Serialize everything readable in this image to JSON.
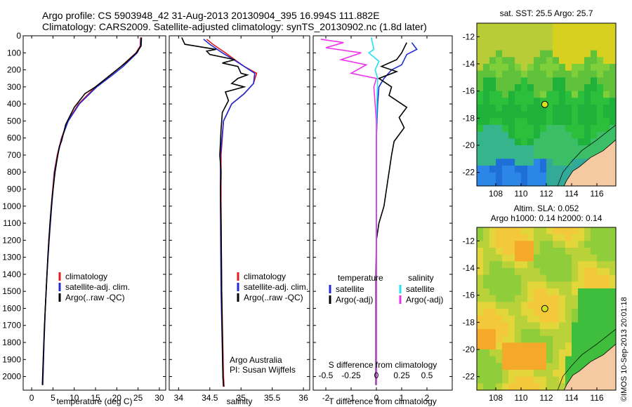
{
  "header": {
    "line1": "Argo profile: CS 5903948_42 31-Aug-2013 20130904_395 16.994S 111.882E",
    "line2": "Climatology: CARS2009. Satellite-adjusted climatology: synTS_20130902.nc (1.8d later)"
  },
  "colors": {
    "climatology": "#e41a1c",
    "satellite": "#1f2bd6",
    "argo": "#000000",
    "salinity_satellite": "#22e3ee",
    "salinity_argo": "#ee33ee",
    "land": "#f5c9a1"
  },
  "chart_data": [
    {
      "type": "line",
      "id": "temperature",
      "xlabel": "temperature (deg C)",
      "ylabel": "",
      "xlim": [
        -2,
        31.5
      ],
      "ylim": [
        2080,
        0
      ],
      "xticks": [
        "0",
        "5",
        "10",
        "15",
        "20",
        "25",
        "30"
      ],
      "yticks": [
        "0",
        "100",
        "200",
        "300",
        "400",
        "500",
        "600",
        "700",
        "800",
        "900",
        "1000",
        "1100",
        "1200",
        "1300",
        "1400",
        "1500",
        "1600",
        "1700",
        "1800",
        "1900",
        "2000"
      ],
      "legend": [
        "climatology",
        "satellite-adj. clim.",
        "Argo(..raw -QC)"
      ],
      "series": [
        {
          "name": "climatology",
          "color": "#e41a1c",
          "points": [
            [
              25.6,
              10
            ],
            [
              25.5,
              60
            ],
            [
              24.5,
              100
            ],
            [
              21,
              180
            ],
            [
              18.5,
              230
            ],
            [
              15,
              300
            ],
            [
              11,
              400
            ],
            [
              8.5,
              500
            ],
            [
              7,
              600
            ],
            [
              6,
              700
            ],
            [
              5.3,
              800
            ],
            [
              4.6,
              1000
            ],
            [
              4,
              1200
            ],
            [
              3.6,
              1400
            ],
            [
              3.2,
              1600
            ],
            [
              2.9,
              1800
            ],
            [
              2.6,
              2050
            ]
          ]
        },
        {
          "name": "satellite-adj. clim.",
          "color": "#1f2bd6",
          "points": [
            [
              25.7,
              10
            ],
            [
              25.6,
              60
            ],
            [
              24.8,
              100
            ],
            [
              21.5,
              180
            ],
            [
              19,
              230
            ],
            [
              15.3,
              300
            ],
            [
              11.2,
              400
            ],
            [
              8.6,
              500
            ],
            [
              7.1,
              600
            ],
            [
              6.1,
              700
            ],
            [
              5.4,
              800
            ],
            [
              4.7,
              1000
            ],
            [
              4.1,
              1200
            ],
            [
              3.6,
              1400
            ],
            [
              3.2,
              1600
            ],
            [
              2.9,
              1800
            ],
            [
              2.6,
              2050
            ]
          ]
        },
        {
          "name": "Argo(..raw -QC)",
          "color": "#000000",
          "points": [
            [
              25.8,
              10
            ],
            [
              25.7,
              60
            ],
            [
              24.6,
              100
            ],
            [
              22,
              160
            ],
            [
              20,
              200
            ],
            [
              17.5,
              250
            ],
            [
              15,
              300
            ],
            [
              12.5,
              340
            ],
            [
              10,
              420
            ],
            [
              8,
              520
            ],
            [
              7,
              620
            ],
            [
              6.5,
              650
            ],
            [
              6,
              720
            ],
            [
              5.5,
              800
            ],
            [
              4.8,
              950
            ],
            [
              4.3,
              1100
            ],
            [
              3.8,
              1300
            ],
            [
              3.4,
              1500
            ],
            [
              3.0,
              1700
            ],
            [
              2.7,
              1900
            ],
            [
              2.5,
              2050
            ]
          ]
        }
      ]
    },
    {
      "type": "line",
      "id": "salinity",
      "xlabel": "salinity",
      "ylabel": "",
      "xlim": [
        33.85,
        36.1
      ],
      "ylim": [
        2080,
        0
      ],
      "xticks": [
        "34",
        "34.5",
        "35",
        "35.5",
        "36"
      ],
      "legend": [
        "climatology",
        "satellite-adj. clim.",
        "Argo(..raw -QC)"
      ],
      "annotation": [
        "Argo Australia",
        "PI: Susan Wijffels"
      ],
      "series": [
        {
          "name": "climatology",
          "color": "#e41a1c",
          "points": [
            [
              34.45,
              20
            ],
            [
              34.55,
              50
            ],
            [
              34.75,
              100
            ],
            [
              34.9,
              140
            ],
            [
              35.05,
              180
            ],
            [
              35.25,
              220
            ],
            [
              35.2,
              280
            ],
            [
              35.05,
              340
            ],
            [
              34.85,
              400
            ],
            [
              34.72,
              500
            ],
            [
              34.68,
              700
            ],
            [
              34.68,
              1000
            ],
            [
              34.69,
              1500
            ],
            [
              34.72,
              2000
            ],
            [
              34.73,
              2060
            ]
          ]
        },
        {
          "name": "satellite-adj. clim.",
          "color": "#1f2bd6",
          "points": [
            [
              34.4,
              20
            ],
            [
              34.5,
              50
            ],
            [
              34.7,
              100
            ],
            [
              34.88,
              140
            ],
            [
              35.05,
              180
            ],
            [
              35.22,
              220
            ],
            [
              35.2,
              280
            ],
            [
              35.05,
              340
            ],
            [
              34.85,
              400
            ],
            [
              34.72,
              500
            ],
            [
              34.67,
              700
            ],
            [
              34.67,
              1000
            ],
            [
              34.68,
              1500
            ],
            [
              34.71,
              2000
            ],
            [
              34.72,
              2060
            ]
          ]
        },
        {
          "name": "Argo(..raw -QC)",
          "color": "#000000",
          "points": [
            [
              34.05,
              10
            ],
            [
              34.1,
              50
            ],
            [
              34.6,
              80
            ],
            [
              34.45,
              90
            ],
            [
              34.5,
              110
            ],
            [
              34.9,
              140
            ],
            [
              34.7,
              160
            ],
            [
              34.95,
              180
            ],
            [
              35.0,
              220
            ],
            [
              35.1,
              230
            ],
            [
              34.95,
              250
            ],
            [
              34.85,
              280
            ],
            [
              35.05,
              300
            ],
            [
              34.75,
              330
            ],
            [
              34.8,
              380
            ],
            [
              34.7,
              450
            ],
            [
              34.68,
              550
            ],
            [
              34.66,
              700
            ],
            [
              34.68,
              800
            ],
            [
              34.67,
              900
            ],
            [
              34.68,
              1100
            ],
            [
              34.69,
              1500
            ],
            [
              34.71,
              2000
            ],
            [
              34.72,
              2060
            ]
          ]
        }
      ]
    },
    {
      "type": "line",
      "id": "difference",
      "xlabel": "T difference from climatology",
      "xlabel_top": "S difference from climatology",
      "xlim": [
        -2.5,
        3
      ],
      "ylim": [
        2080,
        0
      ],
      "xticks": [
        "-2",
        "-1",
        "0",
        "1",
        "2"
      ],
      "xticks_top": [
        "-0.5",
        "-0.25",
        "0",
        "0.25",
        "0.5"
      ],
      "legend_left_title": "temperature",
      "legend_right_title": "salinity",
      "legend": [
        "satellite",
        "Argo(-adj)",
        "satellite",
        "Argo(-adj)"
      ],
      "series": [
        {
          "name": "satellite",
          "color": "#1f2bd6",
          "points": [
            [
              1.4,
              40
            ],
            [
              1.6,
              80
            ],
            [
              1.2,
              110
            ],
            [
              1.0,
              170
            ],
            [
              0.6,
              200
            ],
            [
              0.3,
              250
            ],
            [
              0.1,
              300
            ],
            [
              0.05,
              400
            ],
            [
              0.0,
              600
            ],
            [
              0.0,
              2050
            ]
          ]
        },
        {
          "name": "Argo(-adj)",
          "color": "#000000",
          "points": [
            [
              1.2,
              40
            ],
            [
              1.0,
              100
            ],
            [
              0.8,
              140
            ],
            [
              0.2,
              180
            ],
            [
              0.8,
              210
            ],
            [
              0.1,
              250
            ],
            [
              0.6,
              300
            ],
            [
              0.5,
              350
            ],
            [
              1.2,
              420
            ],
            [
              0.9,
              480
            ],
            [
              1.1,
              540
            ],
            [
              0.7,
              620
            ],
            [
              0.6,
              700
            ],
            [
              0.5,
              800
            ],
            [
              0.4,
              900
            ],
            [
              0.3,
              1000
            ],
            [
              0.1,
              1100
            ],
            [
              0.0,
              1200
            ],
            [
              -0.02,
              1400
            ],
            [
              -0.02,
              2050
            ]
          ]
        },
        {
          "name": "satellite",
          "color": "#22e3ee",
          "points": [
            [
              -0.2,
              10
            ],
            [
              -0.1,
              80
            ],
            [
              -0.3,
              100
            ],
            [
              0.1,
              150
            ],
            [
              -0.05,
              200
            ],
            [
              0.05,
              250
            ],
            [
              0.02,
              400
            ],
            [
              0.0,
              600
            ],
            [
              0.0,
              2050
            ]
          ]
        },
        {
          "name": "Argo(-adj)",
          "color": "#ee33ee",
          "points": [
            [
              -2.2,
              20
            ],
            [
              -1.3,
              40
            ],
            [
              -2.0,
              70
            ],
            [
              -0.6,
              100
            ],
            [
              -1.4,
              140
            ],
            [
              -0.4,
              170
            ],
            [
              -1.0,
              220
            ],
            [
              0.0,
              250
            ],
            [
              -0.1,
              300
            ],
            [
              0.0,
              500
            ],
            [
              0.0,
              2050
            ]
          ]
        }
      ]
    }
  ],
  "maps": [
    {
      "title": "sat. SST: 25.5 Argo: 25.7",
      "xticks": [
        "108",
        "110",
        "112",
        "114",
        "116"
      ],
      "yticks": [
        "-12",
        "-14",
        "-16",
        "-18",
        "-20",
        "-22"
      ],
      "lon_range": [
        106.5,
        117.5
      ],
      "lat_range": [
        -23,
        -11
      ],
      "marker": {
        "lon": 111.88,
        "lat": -16.99
      }
    },
    {
      "title": "Altim. SLA: 0.052",
      "subtitle": "Argo h1000: 0.14 h2000: 0.14",
      "xticks": [
        "108",
        "110",
        "112",
        "114",
        "116"
      ],
      "yticks": [
        "-12",
        "-14",
        "-16",
        "-18",
        "-20",
        "-22"
      ],
      "lon_range": [
        106.5,
        117.5
      ],
      "lat_range": [
        -23,
        -11
      ],
      "marker": {
        "lon": 111.88,
        "lat": -16.99
      }
    }
  ],
  "footer_stamp": "©IMOS 10-Sep-2013 20:01:18"
}
